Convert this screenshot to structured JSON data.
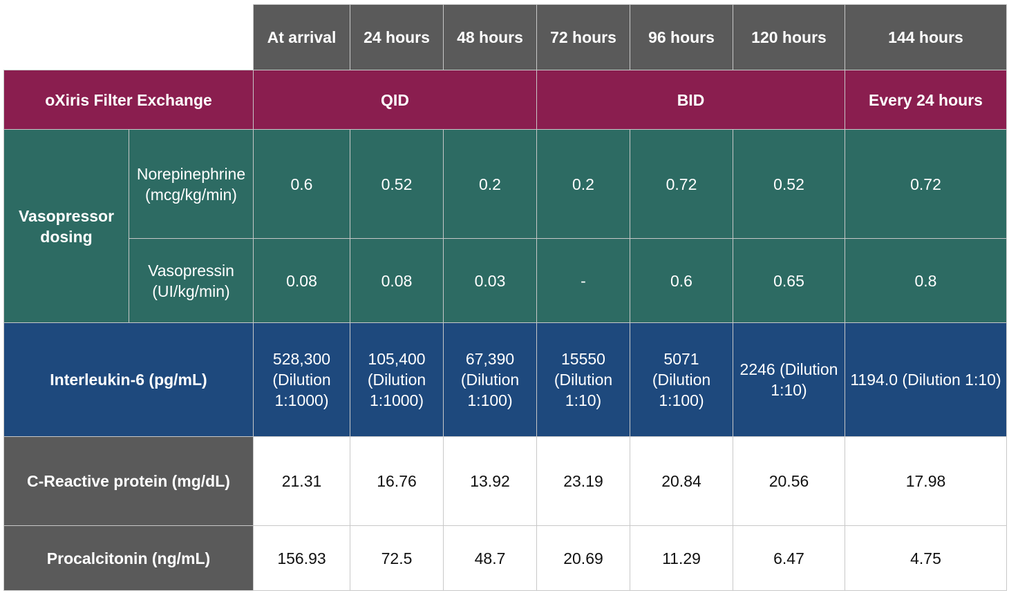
{
  "columns": [
    "At arrival",
    "24 hours",
    "48 hours",
    "72 hours",
    "96 hours",
    "120 hours",
    "144 hours"
  ],
  "filter_exchange": {
    "label": "oXiris Filter Exchange",
    "groups": [
      "QID",
      "BID",
      "Every 24 hours"
    ]
  },
  "vasopressor": {
    "label": "Vasopressor dosing",
    "norepinephrine": {
      "label": "Norepinephrine (mcg/kg/min)",
      "values": [
        "0.6",
        "0.52",
        "0.2",
        "0.2",
        "0.72",
        "0.52",
        "0.72"
      ]
    },
    "vasopressin": {
      "label": "Vasopressin (UI/kg/min)",
      "values": [
        "0.08",
        "0.08",
        "0.03",
        "-",
        "0.6",
        "0.65",
        "0.8"
      ]
    }
  },
  "interleukin6": {
    "label": "Interleukin-6 (pg/mL)",
    "values": [
      "528,300 (Dilution 1:1000)",
      "105,400 (Dilution 1:1000)",
      "67,390 (Dilution 1:100)",
      "15550 (Dilution 1:10)",
      "5071 (Dilution 1:100)",
      "2246 (Dilution 1:10)",
      "1194.0 (Dilution 1:10)"
    ]
  },
  "crp": {
    "label": "C-Reactive protein (mg/dL)",
    "values": [
      "21.31",
      "16.76",
      "13.92",
      "23.19",
      "20.84",
      "20.56",
      "17.98"
    ]
  },
  "procalcitonin": {
    "label": "Procalcitonin (ng/mL)",
    "values": [
      "156.93",
      "72.5",
      "48.7",
      "20.69",
      "11.29",
      "6.47",
      "4.75"
    ]
  },
  "colors": {
    "header_gray": "#5a5a5a",
    "filter_maroon": "#8a1e4f",
    "vaso_teal": "#2d6b63",
    "il6_blue": "#1e497d"
  }
}
